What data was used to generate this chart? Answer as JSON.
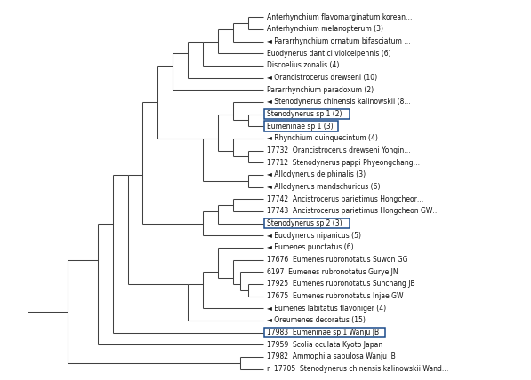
{
  "taxa": [
    {
      "name": "Anterhynchium flavomarginatum korean…",
      "y": 33,
      "boxed": false
    },
    {
      "name": "Anterhynchium melanopterum (3)",
      "y": 32,
      "boxed": false
    },
    {
      "name": "◄ Pararrhynchium ornatum bifasciatum …",
      "y": 31,
      "boxed": false
    },
    {
      "name": "Euodynerus dantici violceipennis (6)",
      "y": 30,
      "boxed": false
    },
    {
      "name": "Discoelius zonalis (4)",
      "y": 29,
      "boxed": false
    },
    {
      "name": "◄ Orancistrocerus drewseni (10)",
      "y": 28,
      "boxed": false
    },
    {
      "name": "Pararrhynchium paradoxum (2)",
      "y": 27,
      "boxed": false
    },
    {
      "name": "◄ Stenodynerus chinensis kalinowskii (8…",
      "y": 26,
      "boxed": false
    },
    {
      "name": "Stenodynerus sp 1 (2)",
      "y": 25,
      "boxed": true
    },
    {
      "name": "Eumeninae sp 1 (3)",
      "y": 24,
      "boxed": true
    },
    {
      "name": "◄ Rhynchium quinquecintum (4)",
      "y": 23,
      "boxed": false
    },
    {
      "name": "17732  Orancistrocerus drewseni Yongin…",
      "y": 22,
      "boxed": false
    },
    {
      "name": "17712  Stenodynerus pappi Phyeongchang…",
      "y": 21,
      "boxed": false
    },
    {
      "name": "◄ Allodynerus delphinalis (3)",
      "y": 20,
      "boxed": false
    },
    {
      "name": "◄ Allodynerus mandschuricus (6)",
      "y": 19,
      "boxed": false
    },
    {
      "name": "17742  Ancistrocerus parietimus Hongcheor…",
      "y": 18,
      "boxed": false
    },
    {
      "name": "17743  Ancistrocerus parietimus Hongcheon GW…",
      "y": 17,
      "boxed": false
    },
    {
      "name": "Stenodynerus sp 2 (3)",
      "y": 16,
      "boxed": true
    },
    {
      "name": "◄ Euodynerus nipanicus (5)",
      "y": 15,
      "boxed": false
    },
    {
      "name": "◄ Eumenes punctatus (6)",
      "y": 14,
      "boxed": false
    },
    {
      "name": "17676  Eumenes rubronotatus Suwon GG",
      "y": 13,
      "boxed": false
    },
    {
      "name": "6197  Eumenes rubronotatus Gurye JN",
      "y": 12,
      "boxed": false
    },
    {
      "name": "17925  Eumenes rubronotatus Sunchang JB",
      "y": 11,
      "boxed": false
    },
    {
      "name": "17675  Eumenes rubronotatus Injae GW",
      "y": 10,
      "boxed": false
    },
    {
      "name": "◄ Eumenes labitatus flavoniger (4)",
      "y": 9,
      "boxed": false
    },
    {
      "name": "◄ Oreumenes decoratus (15)",
      "y": 8,
      "boxed": false
    },
    {
      "name": "17983  Eumeninae sp 1 Wanju JB",
      "y": 7,
      "boxed": true
    },
    {
      "name": "17959  Scolia oculata Kyoto Japan",
      "y": 6,
      "boxed": false
    },
    {
      "name": "17982  Ammophila sabulosa Wanju JB",
      "y": 5,
      "boxed": false
    },
    {
      "name": "r  17705  Stenodynerus chinensis kalinowskii Wand…",
      "y": 4,
      "boxed": false
    }
  ],
  "background_color": "#ffffff",
  "line_color": "#404040",
  "box_color": "#1a4a8a",
  "text_color": "#111111",
  "font_size": 5.5,
  "xlim": [
    0.0,
    1.05
  ],
  "ylim": [
    3.3,
    34.2
  ]
}
